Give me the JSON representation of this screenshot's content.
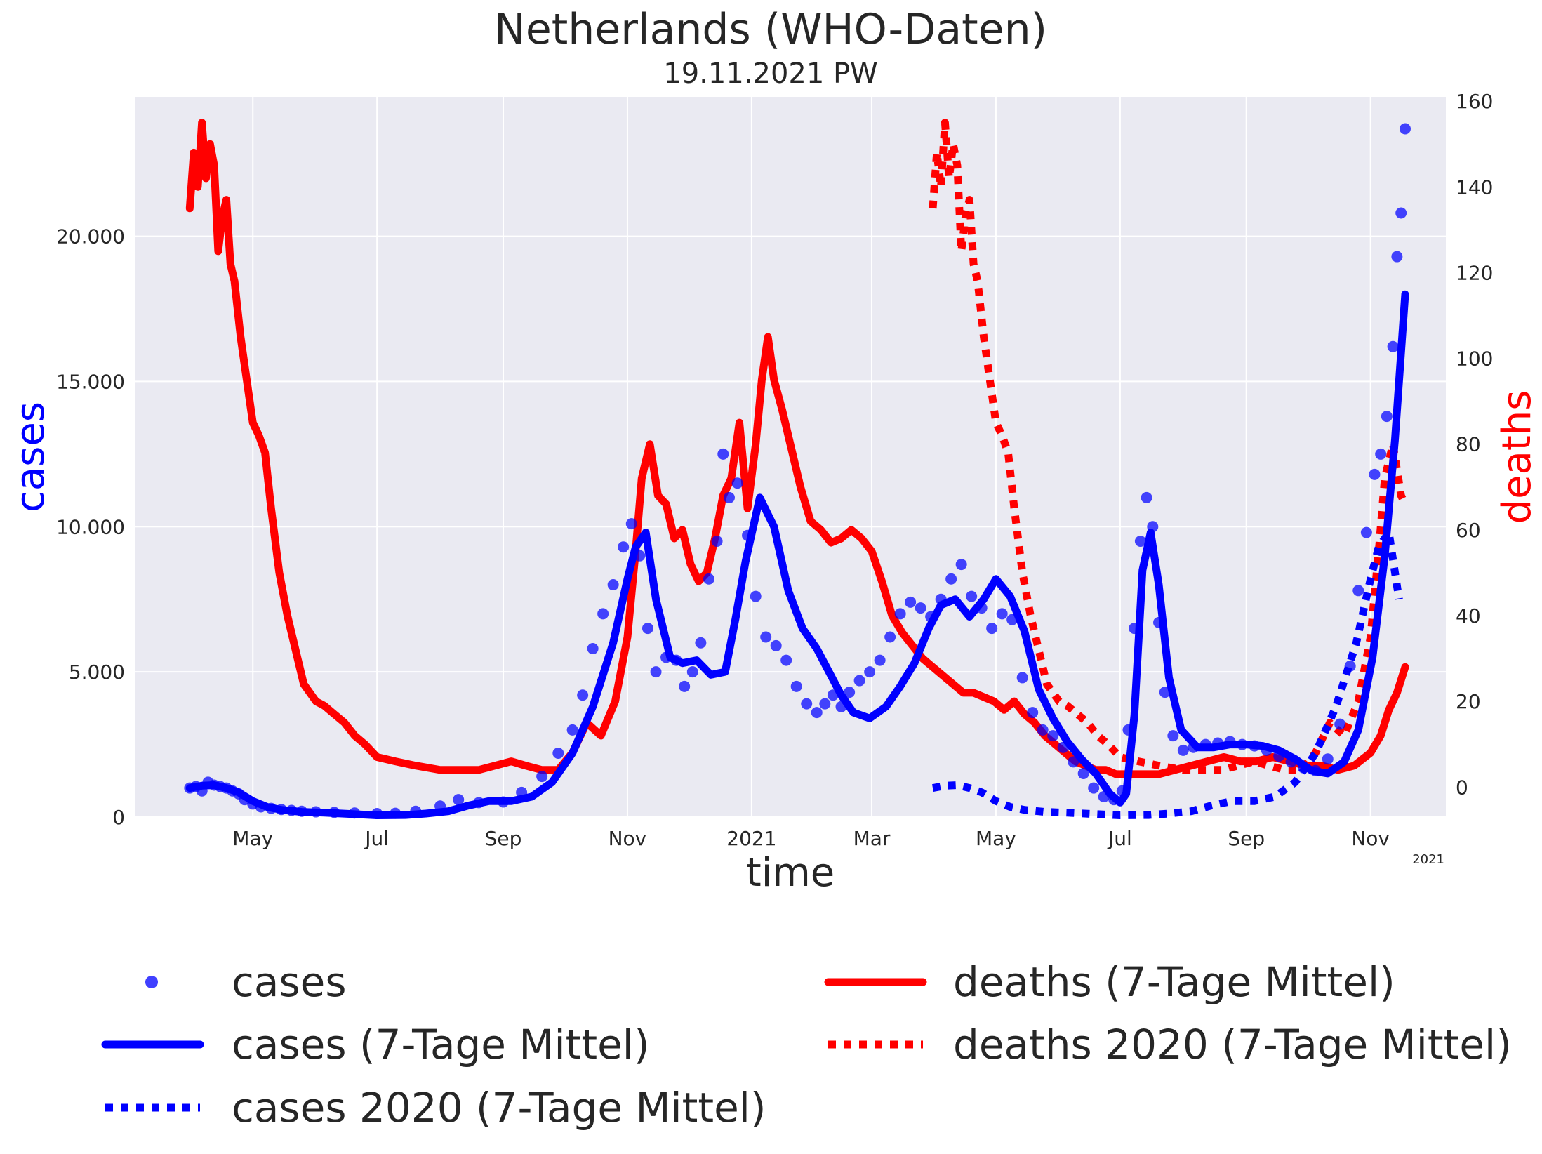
{
  "chart_data": {
    "type": "line",
    "title": "Netherlands  (WHO-Daten)",
    "subtitle": "19.11.2021 PW",
    "xlabel": "time",
    "ylabel_left": "cases",
    "ylabel_right": "deaths",
    "x_offset_label": "2021",
    "x_ticks": [
      "May",
      "Jul",
      "Sep",
      "Nov",
      "2021",
      "Mar",
      "May",
      "Jul",
      "Sep",
      "Nov"
    ],
    "x_tick_dates": [
      "2020-05-01",
      "2020-07-01",
      "2020-09-01",
      "2020-11-01",
      "2021-01-01",
      "2021-03-01",
      "2021-05-01",
      "2021-07-01",
      "2021-09-01",
      "2021-11-01"
    ],
    "xlim": [
      "2020-03-04",
      "2021-12-08"
    ],
    "y_left_ticks": [
      "0",
      "5.000",
      "10.000",
      "15.000",
      "20.000"
    ],
    "y_left_tick_values": [
      0,
      5000,
      10000,
      15000,
      20000
    ],
    "ylim_left": [
      0,
      24800
    ],
    "y_right_ticks": [
      "0",
      "20",
      "40",
      "60",
      "80",
      "100",
      "120",
      "140",
      "160"
    ],
    "y_right_tick_values": [
      0,
      20,
      40,
      60,
      80,
      100,
      120,
      140,
      160
    ],
    "ylim_right": [
      -7,
      161
    ],
    "grid": true,
    "legend_position": "bottom",
    "colors": {
      "background": "#eaeaf2",
      "grid": "#ffffff",
      "cases": "#0000ff",
      "deaths": "#ff0000",
      "text": "#262626"
    },
    "series": [
      {
        "name": "cases",
        "axis": "left",
        "style": "dots",
        "x": [
          "2020-03-31",
          "2020-04-03",
          "2020-04-06",
          "2020-04-09",
          "2020-04-12",
          "2020-04-15",
          "2020-04-18",
          "2020-04-21",
          "2020-04-24",
          "2020-04-27",
          "2020-05-01",
          "2020-05-05",
          "2020-05-10",
          "2020-05-15",
          "2020-05-20",
          "2020-05-25",
          "2020-06-01",
          "2020-06-10",
          "2020-06-20",
          "2020-07-01",
          "2020-07-10",
          "2020-07-20",
          "2020-08-01",
          "2020-08-10",
          "2020-08-20",
          "2020-09-01",
          "2020-09-10",
          "2020-09-20",
          "2020-09-28",
          "2020-10-05",
          "2020-10-10",
          "2020-10-15",
          "2020-10-20",
          "2020-10-25",
          "2020-10-30",
          "2020-11-03",
          "2020-11-07",
          "2020-11-11",
          "2020-11-15",
          "2020-11-20",
          "2020-11-25",
          "2020-11-29",
          "2020-12-03",
          "2020-12-07",
          "2020-12-11",
          "2020-12-15",
          "2020-12-18",
          "2020-12-21",
          "2020-12-25",
          "2020-12-30",
          "2021-01-03",
          "2021-01-08",
          "2021-01-13",
          "2021-01-18",
          "2021-01-23",
          "2021-01-28",
          "2021-02-02",
          "2021-02-06",
          "2021-02-10",
          "2021-02-14",
          "2021-02-18",
          "2021-02-23",
          "2021-02-28",
          "2021-03-05",
          "2021-03-10",
          "2021-03-15",
          "2021-03-20",
          "2021-03-25",
          "2021-03-30",
          "2021-04-04",
          "2021-04-09",
          "2021-04-14",
          "2021-04-19",
          "2021-04-24",
          "2021-04-29",
          "2021-05-04",
          "2021-05-09",
          "2021-05-14",
          "2021-05-19",
          "2021-05-24",
          "2021-05-29",
          "2021-06-03",
          "2021-06-08",
          "2021-06-13",
          "2021-06-18",
          "2021-06-23",
          "2021-06-28",
          "2021-07-02",
          "2021-07-05",
          "2021-07-08",
          "2021-07-11",
          "2021-07-14",
          "2021-07-17",
          "2021-07-20",
          "2021-07-23",
          "2021-07-27",
          "2021-08-01",
          "2021-08-06",
          "2021-08-12",
          "2021-08-18",
          "2021-08-24",
          "2021-08-30",
          "2021-09-05",
          "2021-09-11",
          "2021-09-17",
          "2021-09-23",
          "2021-09-29",
          "2021-10-05",
          "2021-10-11",
          "2021-10-17",
          "2021-10-22",
          "2021-10-26",
          "2021-10-30",
          "2021-11-03",
          "2021-11-06",
          "2021-11-09",
          "2021-11-12",
          "2021-11-14",
          "2021-11-16",
          "2021-11-18"
        ],
        "values": [
          1000,
          1050,
          900,
          1200,
          1100,
          1050,
          1000,
          900,
          800,
          600,
          450,
          350,
          300,
          260,
          230,
          200,
          180,
          160,
          140,
          120,
          130,
          200,
          380,
          600,
          500,
          520,
          850,
          1400,
          2200,
          3000,
          4200,
          5800,
          7000,
          8000,
          9300,
          10100,
          9000,
          6500,
          5000,
          5500,
          5400,
          4500,
          5000,
          6000,
          8200,
          9500,
          12500,
          11000,
          11500,
          9700,
          7600,
          6200,
          5900,
          5400,
          4500,
          3900,
          3600,
          3900,
          4200,
          3800,
          4300,
          4700,
          5000,
          5400,
          6200,
          7000,
          7400,
          7200,
          6900,
          7500,
          8200,
          8700,
          7600,
          7200,
          6500,
          7000,
          6800,
          4800,
          3600,
          3000,
          2800,
          2400,
          1900,
          1500,
          1000,
          700,
          600,
          900,
          3000,
          6500,
          9500,
          11000,
          10000,
          6700,
          4300,
          2800,
          2300,
          2400,
          2500,
          2550,
          2600,
          2500,
          2450,
          2300,
          2100,
          1900,
          1700,
          1600,
          2000,
          3200,
          5200,
          7800,
          9800,
          11800,
          12500,
          13800,
          16200,
          19300,
          20800,
          23700
        ]
      },
      {
        "name": "cases (7-Tage Mittel)",
        "axis": "left",
        "style": "solid",
        "x": [
          "2020-03-31",
          "2020-04-06",
          "2020-04-12",
          "2020-04-18",
          "2020-04-24",
          "2020-05-01",
          "2020-05-08",
          "2020-05-15",
          "2020-05-25",
          "2020-06-05",
          "2020-06-20",
          "2020-07-01",
          "2020-07-15",
          "2020-07-25",
          "2020-08-05",
          "2020-08-15",
          "2020-08-25",
          "2020-09-05",
          "2020-09-15",
          "2020-09-25",
          "2020-10-05",
          "2020-10-15",
          "2020-10-25",
          "2020-11-01",
          "2020-11-05",
          "2020-11-10",
          "2020-11-15",
          "2020-11-22",
          "2020-11-28",
          "2020-12-05",
          "2020-12-12",
          "2020-12-19",
          "2020-12-24",
          "2020-12-29",
          "2021-01-05",
          "2021-01-12",
          "2021-01-19",
          "2021-01-26",
          "2021-02-02",
          "2021-02-08",
          "2021-02-14",
          "2021-02-20",
          "2021-02-28",
          "2021-03-08",
          "2021-03-15",
          "2021-03-22",
          "2021-03-29",
          "2021-04-04",
          "2021-04-11",
          "2021-04-18",
          "2021-04-25",
          "2021-05-01",
          "2021-05-08",
          "2021-05-15",
          "2021-05-22",
          "2021-05-29",
          "2021-06-05",
          "2021-06-12",
          "2021-06-19",
          "2021-06-26",
          "2021-07-01",
          "2021-07-04",
          "2021-07-08",
          "2021-07-12",
          "2021-07-16",
          "2021-07-20",
          "2021-07-25",
          "2021-07-31",
          "2021-08-08",
          "2021-08-16",
          "2021-08-24",
          "2021-09-01",
          "2021-09-09",
          "2021-09-17",
          "2021-09-25",
          "2021-10-03",
          "2021-10-11",
          "2021-10-19",
          "2021-10-26",
          "2021-11-02",
          "2021-11-08",
          "2021-11-13",
          "2021-11-18"
        ],
        "values": [
          1000,
          1080,
          1100,
          1000,
          850,
          550,
          350,
          250,
          180,
          150,
          100,
          60,
          70,
          120,
          200,
          400,
          550,
          550,
          700,
          1200,
          2200,
          3800,
          6000,
          8200,
          9300,
          9800,
          7500,
          5500,
          5300,
          5400,
          4900,
          5000,
          6800,
          8800,
          11000,
          10000,
          7800,
          6500,
          5800,
          5000,
          4200,
          3600,
          3400,
          3800,
          4500,
          5300,
          6500,
          7300,
          7500,
          6900,
          7500,
          8200,
          7600,
          6400,
          4400,
          3400,
          2600,
          2000,
          1500,
          800,
          500,
          800,
          3500,
          8500,
          9800,
          8000,
          4800,
          3000,
          2400,
          2400,
          2500,
          2500,
          2450,
          2300,
          2000,
          1600,
          1500,
          1900,
          3000,
          5500,
          9000,
          13000,
          18000
        ]
      },
      {
        "name": "cases 2020 (7-Tage Mittel)",
        "axis": "left",
        "style": "dotted",
        "x": [
          "2021-03-31",
          "2021-04-06",
          "2021-04-12",
          "2021-04-18",
          "2021-04-24",
          "2021-05-01",
          "2021-05-08",
          "2021-05-15",
          "2021-05-25",
          "2021-06-05",
          "2021-06-20",
          "2021-07-01",
          "2021-07-15",
          "2021-07-25",
          "2021-08-05",
          "2021-08-15",
          "2021-08-25",
          "2021-09-05",
          "2021-09-15",
          "2021-09-25",
          "2021-10-05",
          "2021-10-15",
          "2021-10-25",
          "2021-11-01",
          "2021-11-05",
          "2021-11-10",
          "2021-11-15"
        ],
        "values": [
          1000,
          1080,
          1100,
          1000,
          850,
          550,
          350,
          250,
          180,
          150,
          100,
          60,
          70,
          120,
          200,
          400,
          550,
          550,
          700,
          1200,
          2200,
          3800,
          6000,
          8200,
          9300,
          9800,
          7500
        ]
      },
      {
        "name": "deaths (7-Tage Mittel)",
        "axis": "right",
        "style": "solid",
        "x": [
          "2020-03-31",
          "2020-04-02",
          "2020-04-04",
          "2020-04-06",
          "2020-04-08",
          "2020-04-10",
          "2020-04-12",
          "2020-04-14",
          "2020-04-16",
          "2020-04-18",
          "2020-04-20",
          "2020-04-22",
          "2020-04-25",
          "2020-04-28",
          "2020-05-01",
          "2020-05-04",
          "2020-05-07",
          "2020-05-10",
          "2020-05-14",
          "2020-05-18",
          "2020-05-22",
          "2020-05-26",
          "2020-06-01",
          "2020-06-05",
          "2020-06-10",
          "2020-06-15",
          "2020-06-20",
          "2020-06-25",
          "2020-07-01",
          "2020-07-10",
          "2020-07-20",
          "2020-08-01",
          "2020-08-10",
          "2020-08-20",
          "2020-08-28",
          "2020-09-05",
          "2020-09-12",
          "2020-09-20",
          "2020-09-28",
          "2020-10-05",
          "2020-10-12",
          "2020-10-19",
          "2020-10-26",
          "2020-11-01",
          "2020-11-05",
          "2020-11-08",
          "2020-11-12",
          "2020-11-16",
          "2020-11-20",
          "2020-11-24",
          "2020-11-28",
          "2020-12-02",
          "2020-12-06",
          "2020-12-10",
          "2020-12-14",
          "2020-12-18",
          "2020-12-22",
          "2020-12-26",
          "2020-12-30",
          "2021-01-03",
          "2021-01-06",
          "2021-01-09",
          "2021-01-12",
          "2021-01-16",
          "2021-01-20",
          "2021-01-25",
          "2021-01-30",
          "2021-02-04",
          "2021-02-09",
          "2021-02-14",
          "2021-02-19",
          "2021-02-24",
          "2021-03-01",
          "2021-03-06",
          "2021-03-11",
          "2021-03-16",
          "2021-03-21",
          "2021-03-26",
          "2021-03-31",
          "2021-04-05",
          "2021-04-10",
          "2021-04-15",
          "2021-04-20",
          "2021-04-25",
          "2021-04-30",
          "2021-05-05",
          "2021-05-10",
          "2021-05-15",
          "2021-05-20",
          "2021-05-25",
          "2021-05-30",
          "2021-06-04",
          "2021-06-09",
          "2021-06-14",
          "2021-06-19",
          "2021-06-24",
          "2021-06-29",
          "2021-07-05",
          "2021-07-12",
          "2021-07-20",
          "2021-07-28",
          "2021-08-05",
          "2021-08-13",
          "2021-08-21",
          "2021-08-29",
          "2021-09-06",
          "2021-09-14",
          "2021-09-22",
          "2021-09-30",
          "2021-10-08",
          "2021-10-16",
          "2021-10-24",
          "2021-11-01",
          "2021-11-06",
          "2021-11-10",
          "2021-11-14",
          "2021-11-18"
        ],
        "values": [
          135,
          148,
          140,
          155,
          142,
          150,
          145,
          125,
          133,
          137,
          122,
          118,
          105,
          95,
          85,
          82,
          78,
          65,
          50,
          40,
          32,
          24,
          20,
          19,
          17,
          15,
          12,
          10,
          7,
          6,
          5,
          4,
          4,
          4,
          5,
          6,
          5,
          4,
          4,
          8,
          15,
          12,
          20,
          35,
          55,
          72,
          80,
          68,
          66,
          58,
          60,
          52,
          48,
          50,
          58,
          68,
          72,
          85,
          65,
          80,
          95,
          105,
          95,
          88,
          80,
          70,
          62,
          60,
          57,
          58,
          60,
          58,
          55,
          48,
          40,
          36,
          33,
          30,
          28,
          26,
          24,
          22,
          22,
          21,
          20,
          18,
          20,
          17,
          15,
          12,
          10,
          8,
          6,
          5,
          4,
          4,
          3,
          3,
          3,
          3,
          4,
          5,
          6,
          7,
          6,
          6,
          7,
          6,
          5,
          5,
          4,
          5,
          8,
          12,
          18,
          22,
          28
        ]
      },
      {
        "name": "deaths 2020 (7-Tage Mittel)",
        "axis": "right",
        "style": "dotted",
        "x": [
          "2021-03-31",
          "2021-04-02",
          "2021-04-04",
          "2021-04-06",
          "2021-04-08",
          "2021-04-10",
          "2021-04-12",
          "2021-04-14",
          "2021-04-16",
          "2021-04-18",
          "2021-04-20",
          "2021-04-22",
          "2021-04-25",
          "2021-04-28",
          "2021-05-01",
          "2021-05-04",
          "2021-05-07",
          "2021-05-10",
          "2021-05-14",
          "2021-05-18",
          "2021-05-22",
          "2021-05-26",
          "2021-06-01",
          "2021-06-05",
          "2021-06-10",
          "2021-06-15",
          "2021-06-20",
          "2021-06-25",
          "2021-07-01",
          "2021-07-10",
          "2021-07-20",
          "2021-08-01",
          "2021-08-10",
          "2021-08-20",
          "2021-08-28",
          "2021-09-05",
          "2021-09-12",
          "2021-09-20",
          "2021-09-28",
          "2021-10-05",
          "2021-10-12",
          "2021-10-19",
          "2021-10-26",
          "2021-11-01",
          "2021-11-05",
          "2021-11-08",
          "2021-11-12",
          "2021-11-16",
          "2021-11-18"
        ],
        "values": [
          135,
          148,
          140,
          155,
          142,
          150,
          145,
          125,
          133,
          137,
          122,
          118,
          105,
          95,
          85,
          82,
          78,
          65,
          50,
          40,
          32,
          24,
          20,
          19,
          17,
          15,
          12,
          10,
          7,
          6,
          5,
          4,
          4,
          4,
          5,
          6,
          5,
          4,
          4,
          8,
          15,
          12,
          20,
          35,
          55,
          72,
          80,
          68,
          66
        ]
      }
    ],
    "legend": [
      {
        "label": "cases",
        "marker": "dot",
        "color": "#0000ff"
      },
      {
        "label": "cases (7-Tage Mittel)",
        "marker": "solid",
        "color": "#0000ff"
      },
      {
        "label": "cases 2020 (7-Tage Mittel)",
        "marker": "dotted",
        "color": "#0000ff"
      },
      {
        "label": "deaths (7-Tage Mittel)",
        "marker": "solid",
        "color": "#ff0000"
      },
      {
        "label": "deaths 2020 (7-Tage Mittel)",
        "marker": "dotted",
        "color": "#ff0000"
      }
    ]
  }
}
